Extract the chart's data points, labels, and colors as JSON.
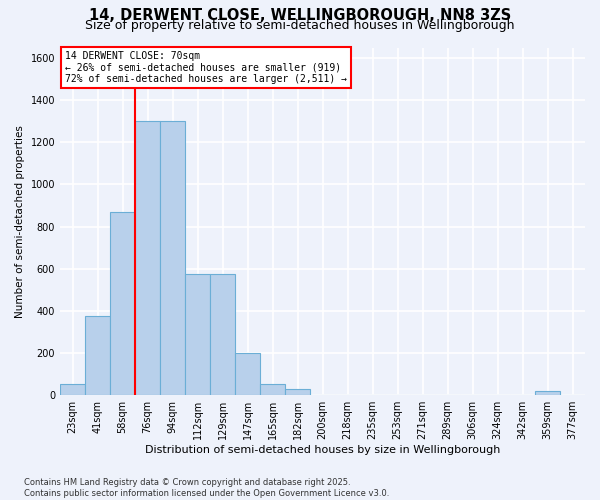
{
  "title": "14, DERWENT CLOSE, WELLINGBOROUGH, NN8 3ZS",
  "subtitle": "Size of property relative to semi-detached houses in Wellingborough",
  "xlabel": "Distribution of semi-detached houses by size in Wellingborough",
  "ylabel": "Number of semi-detached properties",
  "bins": [
    "23sqm",
    "41sqm",
    "58sqm",
    "76sqm",
    "94sqm",
    "112sqm",
    "129sqm",
    "147sqm",
    "165sqm",
    "182sqm",
    "200sqm",
    "218sqm",
    "235sqm",
    "253sqm",
    "271sqm",
    "289sqm",
    "306sqm",
    "324sqm",
    "342sqm",
    "359sqm",
    "377sqm"
  ],
  "values": [
    55,
    375,
    870,
    1300,
    1300,
    575,
    575,
    200,
    55,
    30,
    0,
    0,
    0,
    0,
    0,
    0,
    0,
    0,
    0,
    20,
    0
  ],
  "bar_color": "#b8d0eb",
  "bar_edge_color": "#6baed6",
  "vline_color": "red",
  "vline_x_index": 3,
  "annotation_title": "14 DERWENT CLOSE: 70sqm",
  "annotation_line2": "← 26% of semi-detached houses are smaller (919)",
  "annotation_line3": "72% of semi-detached houses are larger (2,511) →",
  "annotation_box_color": "red",
  "ylim": [
    0,
    1650
  ],
  "yticks": [
    0,
    200,
    400,
    600,
    800,
    1000,
    1200,
    1400,
    1600
  ],
  "footnote1": "Contains HM Land Registry data © Crown copyright and database right 2025.",
  "footnote2": "Contains public sector information licensed under the Open Government Licence v3.0.",
  "background_color": "#eef2fb",
  "grid_color": "white",
  "title_fontsize": 10.5,
  "subtitle_fontsize": 9
}
